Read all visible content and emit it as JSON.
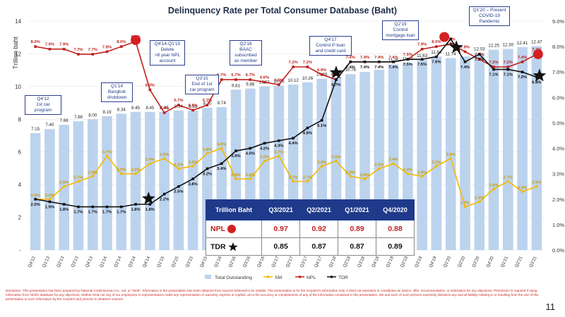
{
  "chart_data": {
    "type": "bar+line",
    "title": "Delinquency Rate per Total Consumer Database (Baht)",
    "ylabel_left": "Trillion baht",
    "ylim_left": [
      0,
      14
    ],
    "left_ticks": [
      "-",
      "2",
      "4",
      "6",
      "8",
      "10",
      "12",
      "14"
    ],
    "ylim_right": [
      0,
      9
    ],
    "right_ticks": [
      "0.0%",
      "1.0%",
      "2.0%",
      "3.0%",
      "4.0%",
      "5.0%",
      "6.0%",
      "7.0%",
      "8.0%",
      "9.0%"
    ],
    "categories": [
      "Q4'12",
      "Q1'13",
      "Q2'13",
      "Q3'13",
      "Q4'13",
      "Q1'14",
      "Q2'14",
      "Q3'14",
      "Q4'14",
      "Q1'15",
      "Q2'15",
      "Q3'15",
      "Q4'15",
      "Q1'16",
      "Q2'16",
      "Q3'16",
      "Q4'16",
      "Q1'17",
      "Q2'17",
      "Q3'17",
      "Q4'17",
      "Q1'18",
      "Q2'18",
      "Q3'18",
      "Q4'18",
      "Q1'19",
      "Q2'19",
      "Q3'19",
      "Q4'19",
      "Q1'20",
      "Q2'20",
      "Q3'20",
      "Q4'20",
      "Q1'21",
      "Q2'21",
      "Q3'21"
    ],
    "series": [
      {
        "name": "Total Outstanding",
        "kind": "bar",
        "axis": "left",
        "color": "#bcd3ee",
        "values": [
          7.15,
          7.4,
          7.66,
          7.88,
          8.0,
          8.19,
          8.34,
          8.45,
          8.45,
          8.45,
          8.54,
          8.53,
          8.7,
          8.74,
          9.81,
          9.88,
          10.01,
          10.05,
          10.12,
          10.26,
          10.48,
          10.58,
          10.76,
          10.89,
          11.02,
          11.35,
          11.44,
          11.63,
          11.84,
          11.74,
          11.84,
          12.03,
          12.25,
          12.3,
          12.41,
          12.47
        ],
        "labels": [
          "7.15",
          "7.40",
          "7.66",
          "7.88",
          "8.00",
          "8.19",
          "8.34",
          "8.45",
          "8.45",
          "8.45",
          "8.54",
          "8.53",
          "8.70",
          "8.74",
          "9.81",
          "9.88",
          "10.01",
          "10.05",
          "10.12",
          "10.26",
          "10.48",
          "10.58",
          "10.76",
          "",
          "",
          "11.35",
          "11.44",
          "11.63",
          "11.84",
          "11.74",
          "",
          "12.03",
          "12.25",
          "12.30",
          "12.41",
          "12.47"
        ]
      },
      {
        "name": "SM",
        "kind": "line",
        "axis": "right",
        "color": "#f5b800",
        "values": [
          2.0,
          2.0,
          2.5,
          2.7,
          2.9,
          3.7,
          3.0,
          3.0,
          3.4,
          3.6,
          3.2,
          3.3,
          3.8,
          4.0,
          2.8,
          2.8,
          3.5,
          3.7,
          2.7,
          2.7,
          3.3,
          3.5,
          2.9,
          2.8,
          3.2,
          3.4,
          3.0,
          2.9,
          3.3,
          3.6,
          1.7,
          1.9,
          2.4,
          2.7,
          2.3,
          2.5
        ],
        "labels": [
          "2.0%",
          "2.0%",
          "2.5%",
          "2.7%",
          "2.9%",
          "3.7%",
          "3.0%",
          "3.0%",
          "3.4%",
          "3.6%",
          "3.2%",
          "3.3%",
          "3.8%",
          "4.0%",
          "2.8%",
          "2.8%",
          "3.5%",
          "3.7%",
          "2.7%",
          "2.7%",
          "3.3%",
          "3.5%",
          "2.9%",
          "2.8%",
          "3.2%",
          "3.4%",
          "3.0%",
          "2.9%",
          "3.3%",
          "3.6%",
          "1.7%",
          "1.9%",
          "2.4%",
          "2.7%",
          "2.3%",
          "2.5%"
        ]
      },
      {
        "name": "NPL",
        "kind": "line",
        "axis": "right",
        "color": "#c0201c",
        "values": [
          8.0,
          7.9,
          7.9,
          7.7,
          7.7,
          7.8,
          8.0,
          8.2,
          6.3,
          5.4,
          5.7,
          5.5,
          5.7,
          6.7,
          6.7,
          6.7,
          6.6,
          6.5,
          7.2,
          7.2,
          6.9,
          6.7,
          7.4,
          7.4,
          7.4,
          7.4,
          7.5,
          7.9,
          8.0,
          8.1,
          7.8,
          7.5,
          7.2,
          7.2,
          7.4,
          7.7
        ],
        "labels": [
          "8.0%",
          "7.9%",
          "7.9%",
          "7.7%",
          "7.7%",
          "7.8%",
          "8.0%",
          "8.2%",
          "6.3%",
          "5.4%",
          "5.7%",
          "5.5%",
          "5.7%",
          "6.7%",
          "6.7%",
          "6.7%",
          "6.6%",
          "6.5%",
          "7.2%",
          "7.2%",
          "6.9%",
          "6.7%",
          "7.4%",
          "7.4%",
          "7.4%",
          "7.4%",
          "7.5%",
          "7.9%",
          "8.0%",
          "8.1%",
          "7.8%",
          "7.5%",
          "7.2%",
          "7.2%",
          "7.4%",
          "7.7%"
        ]
      },
      {
        "name": "TDR",
        "kind": "line",
        "axis": "right",
        "color": "#111111",
        "values": [
          2.0,
          1.9,
          1.8,
          1.7,
          1.7,
          1.7,
          1.7,
          1.8,
          1.8,
          2.2,
          2.5,
          2.8,
          3.2,
          3.4,
          3.9,
          4.0,
          4.2,
          4.3,
          4.4,
          4.8,
          5.1,
          6.7,
          7.4,
          7.4,
          7.4,
          7.4,
          7.5,
          7.5,
          7.6,
          8.3,
          7.4,
          7.7,
          7.1,
          7.1,
          7.0,
          6.8
        ],
        "labels": [
          "2.0%",
          "1.9%",
          "1.8%",
          "1.7%",
          "1.7%",
          "1.7%",
          "1.7%",
          "1.8%",
          "1.8%",
          "2.2%",
          "2.5%",
          "2.8%",
          "3.2%",
          "3.4%",
          "3.9%",
          "4.0%",
          "4.2%",
          "4.3%",
          "4.4%",
          "4.8%",
          "5.1%",
          "6.7%",
          "7.4%",
          "7.4%",
          "7.4%",
          "7.4%",
          "7.5%",
          "7.5%",
          "7.6%",
          "8.3%",
          "7.4%",
          "7.7%",
          "7.1%",
          "7.1%",
          "7.0%",
          "6.8%"
        ]
      }
    ],
    "legend": [
      "Total Outstanding",
      "SM",
      "NPL",
      "TDR"
    ],
    "legend_position": "bottom"
  },
  "callouts": [
    {
      "text": [
        "Q4'12",
        "1st car",
        "program"
      ]
    },
    {
      "text": [
        "Q1'14",
        "Bangkok",
        "shutdown"
      ]
    },
    {
      "text": [
        "Q4'14-Q1'15",
        "Delete",
        ">8 year NPL",
        "account"
      ]
    },
    {
      "text": [
        "Q3'15",
        "End of 1st",
        "car program"
      ]
    },
    {
      "text": [
        "Q2'16",
        "BAAC",
        "subscribed",
        "as member"
      ]
    },
    {
      "text": [
        "Q4'17",
        "Control P-loan",
        "and credit card"
      ]
    },
    {
      "text": [
        "Q2'19",
        "Control",
        "mortgage loan"
      ]
    },
    {
      "text": [
        "Q1'20 – Present",
        "COVID-19",
        "Pandemic"
      ]
    }
  ],
  "table": {
    "header": [
      "Trillion Baht",
      "Q3/2021",
      "Q2/2021",
      "Q1/2021",
      "Q4/2020"
    ],
    "rows": [
      {
        "label": "NPL",
        "values": [
          "0.97",
          "0.92",
          "0.89",
          "0.88"
        ]
      },
      {
        "label": "TDR",
        "values": [
          "0.85",
          "0.87",
          "0.87",
          "0.89"
        ]
      }
    ]
  },
  "disclaimer": "Disclaimer: This presentation has been prepared by National Credit Bureau Co., Ltd. or \"NCB\". Information in the presentation has been obtained from sources believed to be reliable. The presentation is for the recipient's information only; it does not represent or constitutes an advice, offer, recommendation, or solicitation for any objectives. Permission is required if using information from NCB's database for any objectives. Neither NCB nor any of our employees or representatives make any representation or warranty, express or implied, as to the accuracy or completeness of any of the information contained in this presentation. We and each of such persons expressly disclaims any and all liability relating to or resulting from the use of this presentation or such information by the recipient and persons in whatever manner.",
  "page_number": "11",
  "colors": {
    "bar": "#bcd3ee",
    "npl": "#c0201c",
    "sm": "#f5b800",
    "tdr": "#111111",
    "navy": "#1f3a8a"
  }
}
